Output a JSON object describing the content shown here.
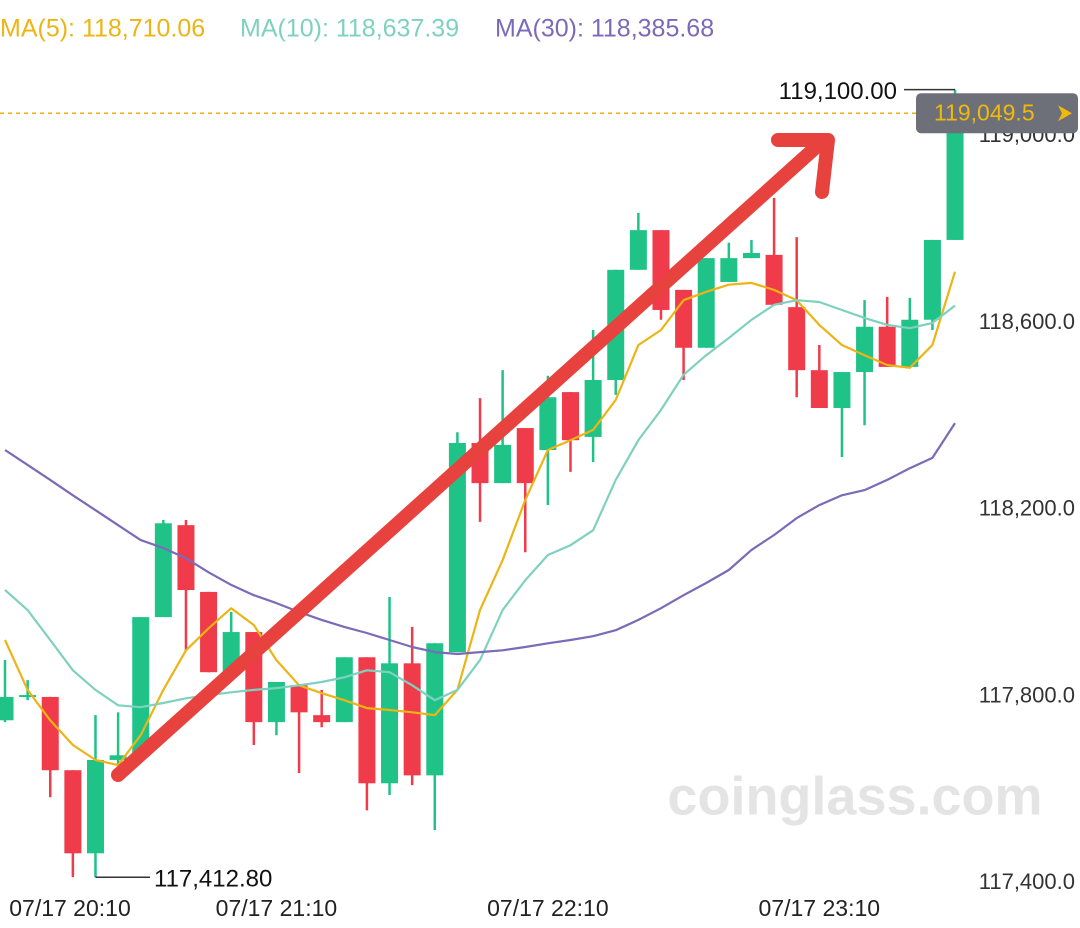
{
  "chart_data": {
    "type": "candlestick",
    "categories": [
      "07/17 20:10",
      null,
      null,
      null,
      null,
      null,
      null,
      null,
      null,
      null,
      null,
      null,
      "07/17 21:10",
      null,
      null,
      null,
      null,
      null,
      null,
      null,
      null,
      null,
      null,
      null,
      "07/17 22:10",
      null,
      null,
      null,
      null,
      null,
      null,
      null,
      null,
      null,
      null,
      null,
      "07/17 23:10",
      null,
      null,
      null,
      null,
      null,
      null
    ],
    "open": [
      117749,
      117799,
      117799,
      117642,
      117464,
      117664,
      117674,
      117970,
      118167,
      118024,
      117852,
      117938,
      117745,
      117824,
      117760,
      117745,
      117884,
      117614,
      117871,
      117631,
      117895,
      118343,
      118257,
      118375,
      118328,
      118452,
      118356,
      118478,
      118714,
      118799,
      118671,
      118547,
      118688,
      118739,
      118746,
      118634,
      118499,
      118418,
      118495,
      118592,
      118506,
      118607,
      118778
    ],
    "high": [
      117878,
      117835,
      117799,
      117642,
      117760,
      117766,
      117970,
      118178,
      118178,
      118024,
      117981,
      117938,
      117831,
      117824,
      117814,
      117884,
      117884,
      118013,
      117949,
      117914,
      118366,
      118439,
      118499,
      118375,
      118487,
      118452,
      118585,
      118714,
      118836,
      118799,
      118671,
      118739,
      118772,
      118778,
      118868,
      118784,
      118553,
      118495,
      118649,
      118656,
      118654,
      118778,
      119100
    ],
    "low": [
      117745,
      117792,
      117584,
      117413,
      117412.8,
      117653,
      117674,
      117970,
      117899,
      117852,
      117852,
      117696,
      117717,
      117636,
      117734,
      117745,
      117556,
      117589,
      117610,
      117514,
      117895,
      118174,
      118257,
      118109,
      118210,
      118281,
      118302,
      118446,
      118714,
      118607,
      118478,
      118547,
      118688,
      118739,
      118639,
      118441,
      118418,
      118313,
      118381,
      118506,
      118506,
      118585,
      118778
    ],
    "close": [
      117799,
      117803,
      117642,
      117464,
      117664,
      117674,
      117970,
      118171,
      118028,
      117852,
      117938,
      117745,
      117831,
      117766,
      117745,
      117884,
      117614,
      117871,
      117631,
      117914,
      118343,
      118257,
      118339,
      118257,
      118441,
      118349,
      118478,
      118714,
      118799,
      118628,
      118547,
      118739,
      118739,
      118750,
      118639,
      118499,
      118418,
      118495,
      118592,
      118506,
      118607,
      118778,
      119049.5
    ],
    "up_color": "#20c387",
    "down_color": "#ef3b4a",
    "series": [
      {
        "name": "MA(5)",
        "legend": "MA(5): 118,710.06",
        "color": "#ecb415",
        "values": [
          117921,
          117814,
          117749,
          117696,
          117664,
          117653,
          117717,
          117814,
          117899,
          117946,
          117989,
          117953,
          117878,
          117824,
          117807,
          117792,
          117775,
          117771,
          117766,
          117760,
          117814,
          117985,
          118092,
          118221,
          118328,
          118349,
          118371,
          118435,
          118553,
          118585,
          118649,
          118667,
          118682,
          118686,
          118671,
          118649,
          118596,
          118553,
          118531,
          118510,
          118504,
          118553,
          118710.06
        ]
      },
      {
        "name": "MA(10)",
        "legend": "MA(10): 118,637.39",
        "color": "#7fd1bf",
        "values": [
          118028,
          117985,
          117921,
          117856,
          117814,
          117781,
          117777,
          117786,
          117796,
          117803,
          117809,
          117814,
          117818,
          117824,
          117831,
          117841,
          117856,
          117852,
          117824,
          117792,
          117814,
          117878,
          117985,
          118049,
          118103,
          118124,
          118156,
          118264,
          118349,
          118414,
          118489,
          118531,
          118568,
          118607,
          118639,
          118649,
          118645,
          118628,
          118611,
          118596,
          118589,
          118600,
          118637.39
        ]
      },
      {
        "name": "MA(30)",
        "legend": "MA(30): 118,385.68",
        "color": "#7b6ab8",
        "values": [
          118328,
          118296,
          118264,
          118231,
          118199,
          118167,
          118135,
          118118,
          118096,
          118066,
          118039,
          118017,
          118000,
          117981,
          117964,
          117949,
          117936,
          117921,
          117906,
          117895,
          117891,
          117895,
          117899,
          117906,
          117914,
          117921,
          117929,
          117942,
          117964,
          117989,
          118017,
          118043,
          118071,
          118114,
          118146,
          118182,
          118210,
          118231,
          118242,
          118264,
          118289,
          118311,
          118385.68
        ]
      }
    ],
    "ylim": [
      117304,
      119292
    ],
    "yticks": [
      {
        "value": 117400,
        "label": "117,400.0"
      },
      {
        "value": 117800,
        "label": "117,800.0"
      },
      {
        "value": 118200,
        "label": "118,200.0"
      },
      {
        "value": 118600,
        "label": "118,600.0"
      },
      {
        "value": 119000,
        "label": "119,000.0"
      }
    ],
    "high_marker": {
      "value": 119100,
      "label": "119,100.00"
    },
    "low_marker": {
      "value": 117412.8,
      "label": "117,412.80"
    },
    "last_price": {
      "value": 119049.5,
      "label": "119,049.5"
    },
    "watermark": "coinglass.com"
  }
}
